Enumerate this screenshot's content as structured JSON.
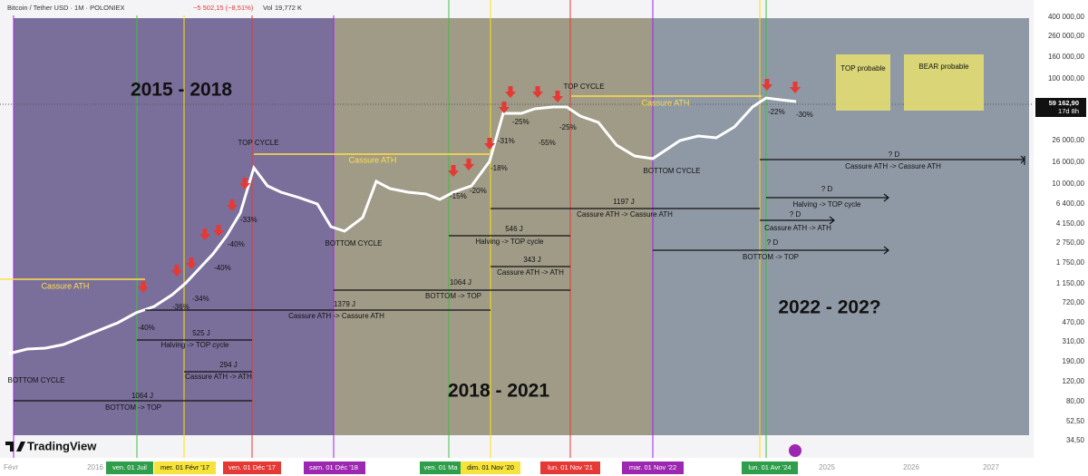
{
  "header": {
    "symbol": "Bitcoin / Tether USD · 1M · POLONIEX",
    "change": "−5 502,15 (−8,51%)",
    "vol_label": "Vol",
    "vol": "19,772 K"
  },
  "price_axis": [
    "400 000,00",
    "260 000,00",
    "160 000,00",
    "100 000,00",
    "26 000,00",
    "16 000,00",
    "10 000,00",
    "6 400,00",
    "4 150,00",
    "2 750,00",
    "1 750,00",
    "1 150,00",
    "720,00",
    "470,00",
    "310,00",
    "190,00",
    "120,00",
    "80,00",
    "52,50",
    "34,50"
  ],
  "current_price": {
    "price": "59 162,90",
    "countdown": "17d 8h"
  },
  "time_axis": {
    "plain": [
      "Févr",
      "2016",
      "2025",
      "2026",
      "2027"
    ],
    "markers": [
      "ven. 01 Juil",
      "mer. 01 Févr '17",
      "ven. 01 Déc '17",
      "sam. 01 Déc '18",
      "ven. 01 Ma",
      "dim. 01 Nov '20",
      "lun. 01 Nov '21",
      "mar. 01 Nov '22",
      "lun. 01 Avr '24"
    ]
  },
  "periods": [
    "2015 - 2018",
    "2018 - 2021",
    "2022 - 202?"
  ],
  "cycle_labels": [
    "TOP CYCLE",
    "TOP CYCLE",
    "BOTTOM CYCLE",
    "BOTTOM CYCLE",
    "BOTTOM CYCLE",
    "Cassure ATH",
    "Cassure ATH",
    "Cassure ATH"
  ],
  "drawdowns": [
    "-40%",
    "-36%",
    "-34%",
    "-40%",
    "-40%",
    "-33%",
    "-15%",
    "-20%",
    "-18%",
    "-31%",
    "-25%",
    "-55%",
    "-25%",
    "-22%",
    "-30%"
  ],
  "measures": [
    {
      "days": "525 J",
      "label": "Halving -> TOP cycle"
    },
    {
      "days": "294 J",
      "label": "Cassure ATH -> ATH"
    },
    {
      "days": "1064 J",
      "label": "BOTTOM -> TOP"
    },
    {
      "days": "1379 J",
      "label": "Cassure ATH -> Cassure ATH"
    },
    {
      "days": "1064 J",
      "label": "BOTTOM -> TOP"
    },
    {
      "days": "343 J",
      "label": "Cassure ATH -> ATH"
    },
    {
      "days": "546 J",
      "label": "Halving -> TOP cycle"
    },
    {
      "days": "1197 J",
      "label": "Cassure ATH -> Cassure ATH"
    },
    {
      "days": "? D",
      "label": "Cassure ATH -> Cassure ATH"
    },
    {
      "days": "? D",
      "label": "Halving -> TOP cycle"
    },
    {
      "days": "? D",
      "label": "Cassure ATH -> ATH"
    },
    {
      "days": "? D",
      "label": "BOTTOM -> TOP"
    }
  ],
  "boxes": [
    "TOP probable",
    "BEAR probable"
  ],
  "logo": "TradingView"
}
